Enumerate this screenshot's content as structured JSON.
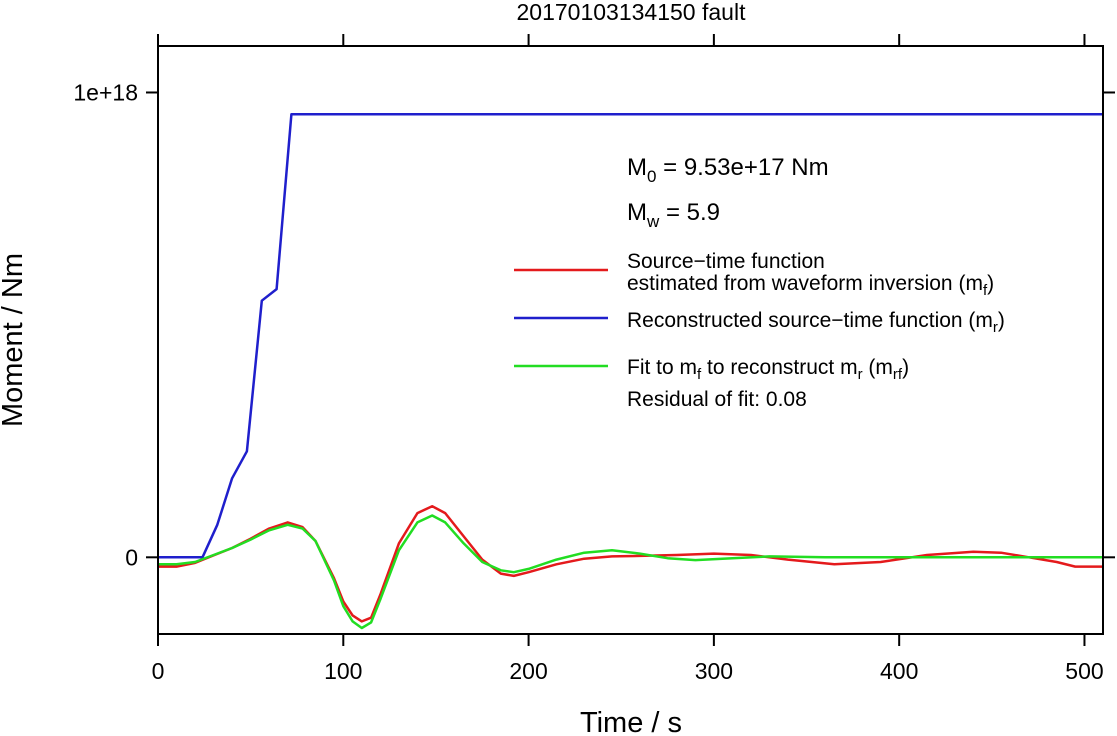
{
  "chart_data": {
    "type": "line",
    "title": "20170103134150 fault",
    "xlabel": "Time / s",
    "ylabel": "Moment / Nm",
    "xlim": [
      0,
      510
    ],
    "ylim": [
      -1.65e+17,
      1.1e+18
    ],
    "xticks": [
      0,
      100,
      200,
      300,
      400,
      500
    ],
    "xtick_labels": [
      "0",
      "100",
      "200",
      "300",
      "400",
      "500"
    ],
    "yticks": [
      0,
      1e+18
    ],
    "ytick_labels": [
      "0",
      "1e+18"
    ],
    "grid": false,
    "legend_position": "right",
    "annotations": {
      "m0_prefix": "M",
      "m0_sub": "0",
      "m0_value": " = 9.53e+17 Nm",
      "mw_prefix": "M",
      "mw_sub": "w",
      "mw_value": " = 5.9",
      "residual": "Residual of fit: 0.08"
    },
    "legend": {
      "red_line1": "Source−time function",
      "red_line2_pre": "estimated from waveform inversion (m",
      "red_line2_sub": "f",
      "red_line2_post": ")",
      "blue_pre": "Reconstructed source−time function (m",
      "blue_sub": "r",
      "blue_post": ")",
      "green_pre": "Fit to m",
      "green_sub1": "f",
      "green_mid": " to reconstruct m",
      "green_sub2": "r",
      "green_mid2": " (m",
      "green_sub3": "rf",
      "green_post": ")"
    },
    "series": [
      {
        "color": "#e41a1c",
        "x": [
          0,
          10,
          20,
          30,
          40,
          50,
          60,
          70,
          78,
          85,
          95,
          100,
          105,
          110,
          115,
          120,
          130,
          140,
          148,
          155,
          165,
          175,
          185,
          192,
          200,
          215,
          230,
          245,
          260,
          280,
          300,
          320,
          340,
          365,
          390,
          415,
          440,
          455,
          470,
          485,
          495,
          510
        ],
        "y": [
          -2e+16,
          -2e+16,
          -1.2e+16,
          4000000000000000.0,
          2e+16,
          4e+16,
          6.2e+16,
          7.5e+16,
          6.5e+16,
          3.5e+16,
          -4.5e+16,
          -9.5e+16,
          -1.25e+17,
          -1.38e+17,
          -1.3e+17,
          -8e+16,
          3e+16,
          9.5e+16,
          1.1e+17,
          9.5e+16,
          4.5e+16,
          -5000000000000000.0,
          -3.5e+16,
          -4e+16,
          -3.2e+16,
          -1.5e+16,
          -3000000000000000.0,
          2000000000000000.0,
          3000000000000000.0,
          5000000000000000.0,
          8000000000000000.0,
          5000000000000000.0,
          -5000000000000000.0,
          -1.5e+16,
          -1e+16,
          5000000000000000.0,
          1.2e+16,
          1e+16,
          0,
          -1e+16,
          -2e+16,
          -2e+16
        ]
      },
      {
        "color": "#1f1fcc",
        "x": [
          0,
          24,
          32,
          40,
          48,
          56,
          64,
          72,
          510
        ],
        "y": [
          0,
          0,
          7e+16,
          1.7e+17,
          2.28e+17,
          5.52e+17,
          5.77e+17,
          9.53e+17,
          9.53e+17
        ]
      },
      {
        "color": "#22dd22",
        "x": [
          0,
          10,
          20,
          30,
          40,
          50,
          60,
          70,
          78,
          85,
          95,
          100,
          105,
          110,
          115,
          120,
          130,
          140,
          148,
          155,
          165,
          175,
          185,
          192,
          200,
          215,
          230,
          245,
          260,
          275,
          290,
          310,
          330,
          360,
          400,
          450,
          480,
          510
        ],
        "y": [
          -1.5e+16,
          -1.5e+16,
          -1e+16,
          5000000000000000.0,
          2e+16,
          3.8e+16,
          5.8e+16,
          7e+16,
          6.2e+16,
          3.5e+16,
          -5e+16,
          -1.05e+17,
          -1.38e+17,
          -1.52e+17,
          -1.4e+17,
          -9e+16,
          1.5e+16,
          7.5e+16,
          9e+16,
          7.5e+16,
          3e+16,
          -1e+16,
          -2.8e+16,
          -3.2e+16,
          -2.5e+16,
          -5000000000000000.0,
          1e+16,
          1.5e+16,
          8000000000000000.0,
          -2000000000000000.0,
          -6000000000000000.0,
          -2000000000000000.0,
          2000000000000000.0,
          0,
          0,
          0,
          0,
          0
        ]
      }
    ]
  }
}
